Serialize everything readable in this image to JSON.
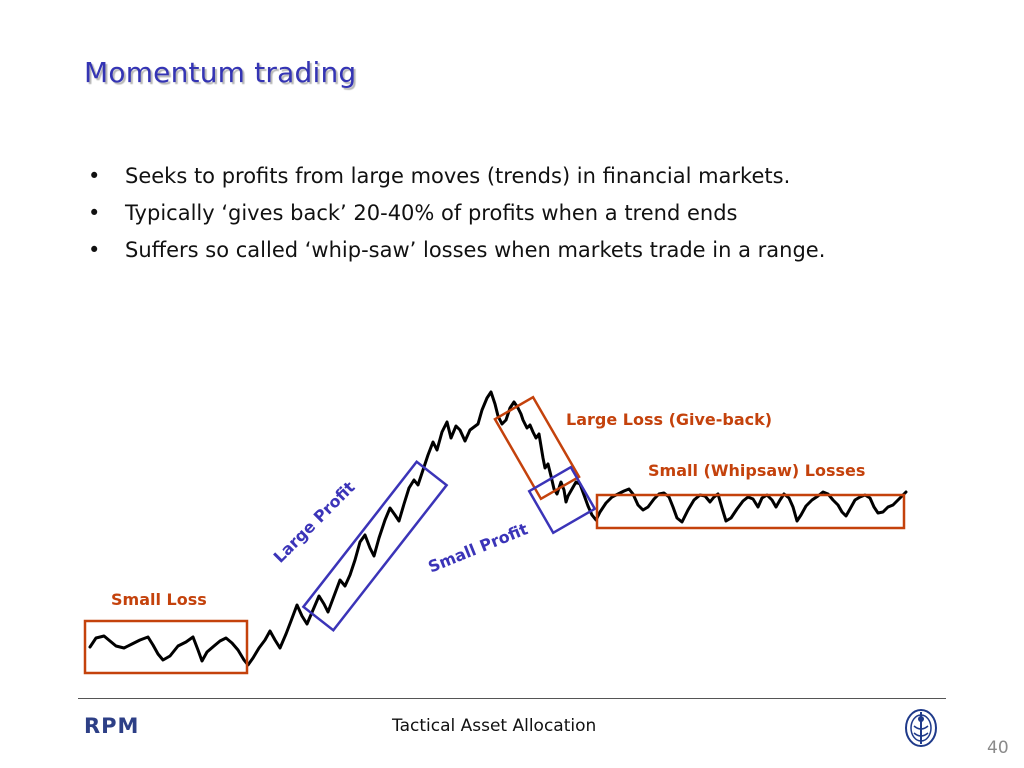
{
  "slide": {
    "title": "Momentum trading",
    "bullet_glyph": "•",
    "bullets": [
      "Seeks to profits from large moves (trends) in financial markets.",
      "Typically ‘gives back’ 20-40% of profits when a trend ends",
      "Suffers so called ‘whip-saw’ losses when markets trade in a range."
    ]
  },
  "diagram": {
    "colors": {
      "loss": "#c4420c",
      "profit": "#3b34b8",
      "line": "#000000"
    },
    "labels": {
      "small_loss": "Small Loss",
      "large_profit": "Large Profit",
      "large_loss": "Large Loss (Give-back)",
      "small_profit": "Small Profit",
      "whipsaw": "Small (Whipsaw) Losses"
    }
  },
  "footer": {
    "brand": "RPM",
    "center_text": "Tactical Asset Allocation",
    "page_number": "40",
    "crest_icon": "crest-icon"
  }
}
